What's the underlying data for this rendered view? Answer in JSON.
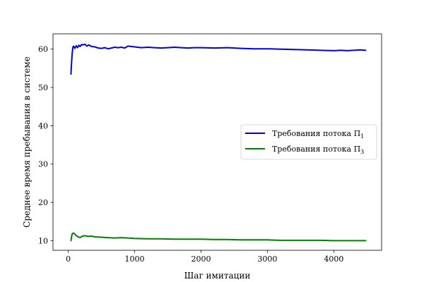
{
  "chart_data": {
    "type": "line",
    "title": "",
    "xlabel": "Шаг имитации",
    "ylabel": "Среднее время пребывания в системе",
    "xlim": [
      -230,
      4720
    ],
    "ylim": [
      7.5,
      64
    ],
    "xticks": [
      0,
      1000,
      2000,
      3000,
      4000
    ],
    "yticks": [
      10,
      20,
      30,
      40,
      50,
      60
    ],
    "xtick_labels": [
      "0",
      "1000",
      "2000",
      "3000",
      "4000"
    ],
    "ytick_labels": [
      "10",
      "20",
      "30",
      "40",
      "50",
      "60"
    ],
    "grid": false,
    "legend": {
      "position": "center-right"
    },
    "series": [
      {
        "name": "Требования потока П",
        "name_sub": "1",
        "color": "#0000dd",
        "x": [
          40,
          50,
          60,
          70,
          80,
          90,
          100,
          120,
          140,
          160,
          180,
          200,
          220,
          250,
          280,
          310,
          350,
          400,
          450,
          500,
          550,
          600,
          650,
          700,
          750,
          800,
          850,
          900,
          1000,
          1100,
          1200,
          1300,
          1400,
          1500,
          1600,
          1700,
          1800,
          1900,
          2000,
          2200,
          2400,
          2600,
          2800,
          3000,
          3200,
          3400,
          3600,
          3800,
          4000,
          4100,
          4200,
          4300,
          4400,
          4480
        ],
        "y": [
          53.5,
          56.5,
          59,
          60.5,
          60.8,
          60.5,
          60.2,
          60.9,
          60.4,
          61,
          60.7,
          61.2,
          61.1,
          61.3,
          60.8,
          61.1,
          60.7,
          60.6,
          60.3,
          60.2,
          60.4,
          60.1,
          60.3,
          60.5,
          60.4,
          60.5,
          60.3,
          60.8,
          60.6,
          60.4,
          60.5,
          60.4,
          60.3,
          60.4,
          60.5,
          60.4,
          60.3,
          60.4,
          60.4,
          60.3,
          60.4,
          60.2,
          60.1,
          60.1,
          60,
          59.9,
          59.8,
          59.7,
          59.6,
          59.7,
          59.6,
          59.7,
          59.8,
          59.7
        ]
      },
      {
        "name": "Требования потока П",
        "name_sub": "3",
        "color": "#008000",
        "x": [
          40,
          50,
          60,
          80,
          100,
          120,
          150,
          180,
          210,
          250,
          300,
          350,
          400,
          500,
          600,
          700,
          800,
          900,
          1000,
          1200,
          1400,
          1600,
          1800,
          2000,
          2200,
          2400,
          2600,
          2800,
          3000,
          3200,
          3400,
          3600,
          3800,
          4000,
          4200,
          4400,
          4480
        ],
        "y": [
          10,
          11,
          11.8,
          12,
          11.7,
          11.3,
          11,
          10.8,
          11.2,
          11.3,
          11.1,
          11.2,
          11,
          10.9,
          10.8,
          10.7,
          10.8,
          10.7,
          10.6,
          10.5,
          10.5,
          10.4,
          10.4,
          10.4,
          10.3,
          10.3,
          10.2,
          10.2,
          10.2,
          10.1,
          10.1,
          10.1,
          10.1,
          10,
          10,
          10,
          10
        ]
      }
    ]
  }
}
